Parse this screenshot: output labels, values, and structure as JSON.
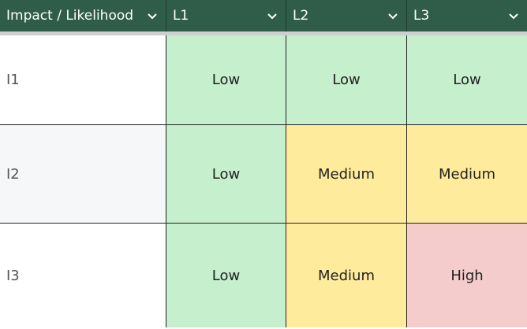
{
  "header": {
    "corner_label": "Impact / Likelihood",
    "columns": [
      "L1",
      "L2",
      "L3"
    ]
  },
  "rows": [
    {
      "label": "I1",
      "cells": [
        "Low",
        "Low",
        "Low"
      ]
    },
    {
      "label": "I2",
      "cells": [
        "Low",
        "Medium",
        "Medium"
      ]
    },
    {
      "label": "I3",
      "cells": [
        "Low",
        "Medium",
        "High"
      ]
    }
  ],
  "colors": {
    "header_bg": "#2f5d4a",
    "low": "#c6efce",
    "medium": "#ffeb9c",
    "high": "#f4cccc"
  },
  "icons": {
    "dropdown": "chevron-down-icon"
  }
}
